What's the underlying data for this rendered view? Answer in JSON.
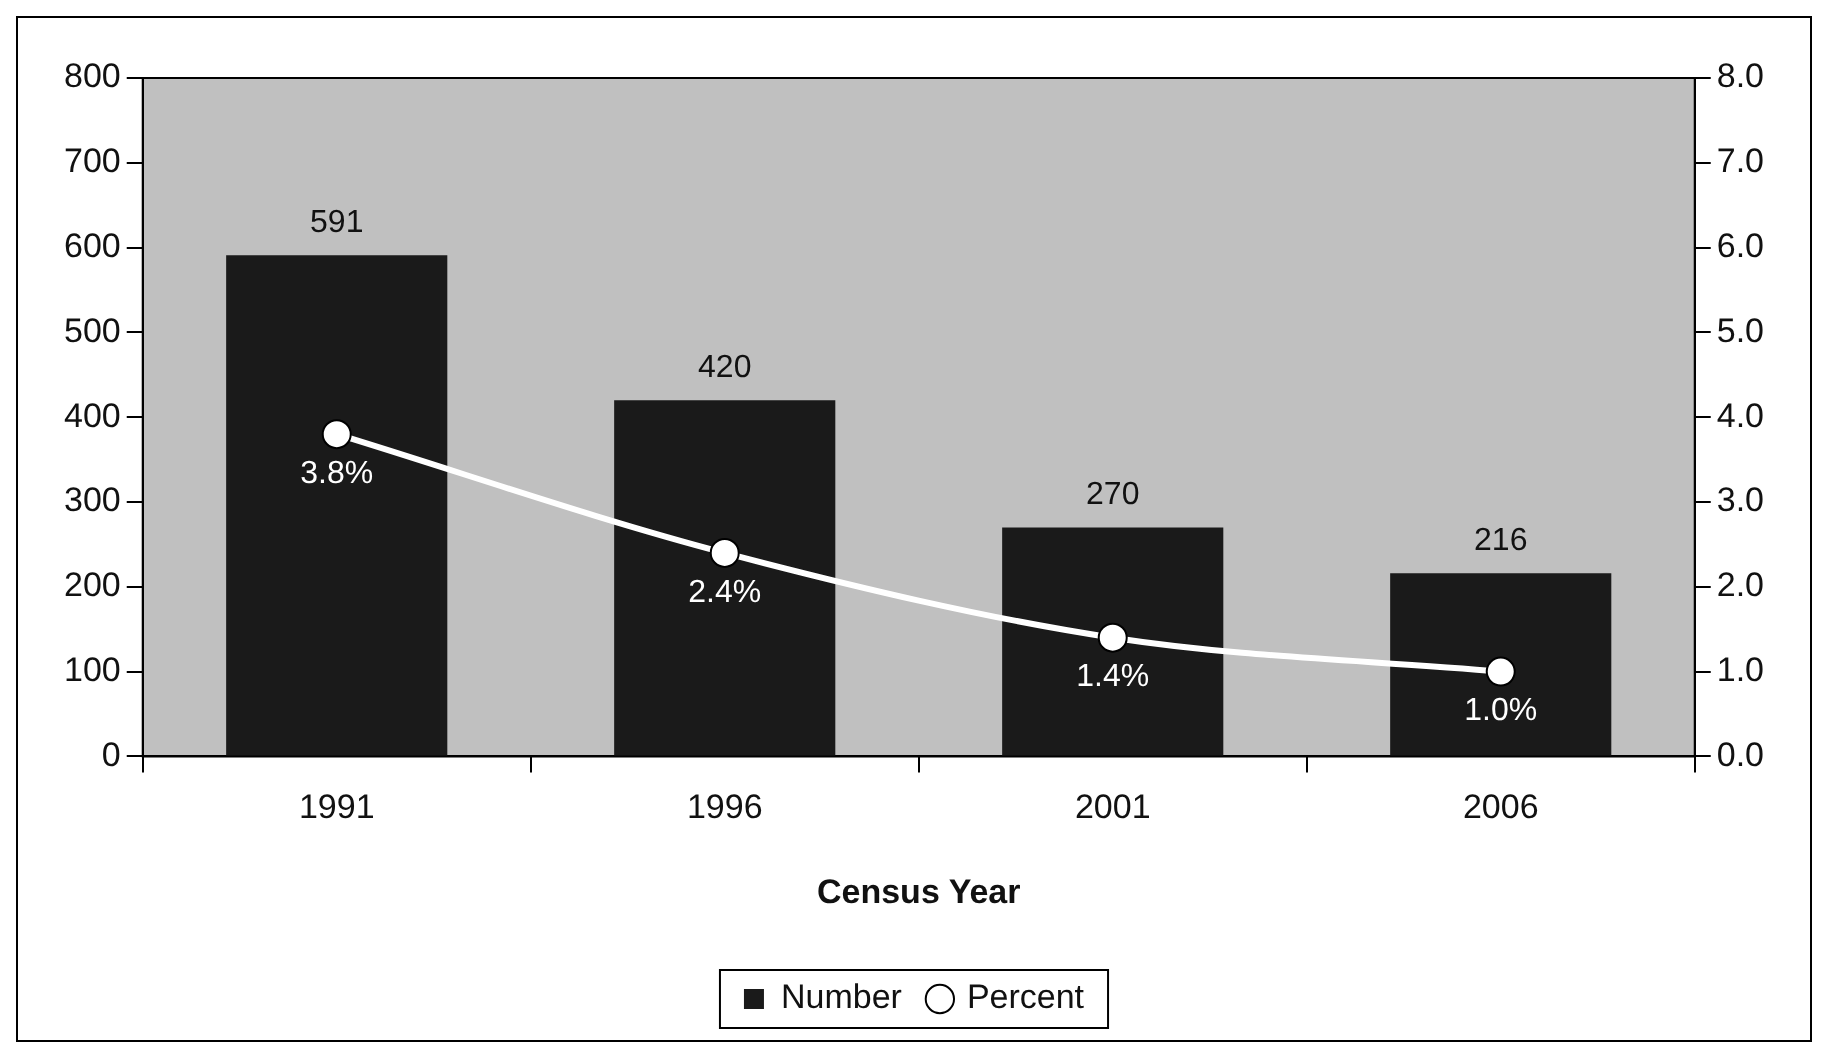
{
  "chart_data": {
    "type": "bar",
    "categories": [
      "1991",
      "1996",
      "2001",
      "2006"
    ],
    "xlabel": "Census Year",
    "series": [
      {
        "name": "Number",
        "color": "#1a1a1a",
        "values": [
          591,
          420,
          270,
          216
        ]
      },
      {
        "name": "Percent",
        "type": "line",
        "axis": "y2",
        "color": "#ffffff",
        "values": [
          3.8,
          2.4,
          1.4,
          1.0
        ],
        "value_labels": [
          "3.8%",
          "2.4%",
          "1.4%",
          "1.0%"
        ]
      }
    ],
    "ylim": [
      0,
      800
    ],
    "yticks": [
      0,
      100,
      200,
      300,
      400,
      500,
      600,
      700,
      800
    ],
    "y2lim": [
      0,
      8
    ],
    "y2ticks": [
      {
        "value": 0,
        "label": "0.0"
      },
      {
        "value": 1,
        "label": "1.0"
      },
      {
        "value": 2,
        "label": "2.0"
      },
      {
        "value": 3,
        "label": "3.0"
      },
      {
        "value": 4,
        "label": "4.0"
      },
      {
        "value": 5,
        "label": "5.0"
      },
      {
        "value": 6,
        "label": "6.0"
      },
      {
        "value": 7,
        "label": "7.0"
      },
      {
        "value": 8,
        "label": "8.0"
      }
    ],
    "data_labels": true,
    "legend": "bottom",
    "marker": "circle"
  }
}
